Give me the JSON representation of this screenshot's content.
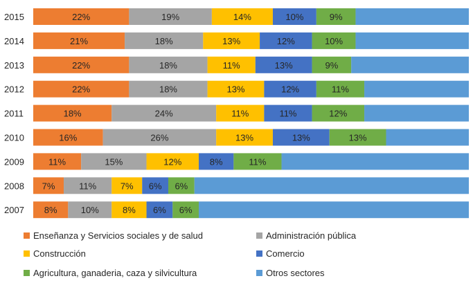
{
  "chart_data": {
    "type": "bar",
    "orientation": "horizontal",
    "stacked": "percent",
    "grid": false,
    "legend_position": "bottom",
    "categories": [
      "2015",
      "2014",
      "2013",
      "2012",
      "2011",
      "2010",
      "2009",
      "2008",
      "2007"
    ],
    "series": [
      {
        "name": "Enseñanza  y Servicios sociales y de salud",
        "color": "#ED7D31",
        "values": [
          22,
          21,
          22,
          22,
          18,
          16,
          11,
          7,
          8
        ]
      },
      {
        "name": "Administración pública",
        "color": "#A5A5A5",
        "values": [
          19,
          18,
          18,
          18,
          24,
          26,
          15,
          11,
          10
        ]
      },
      {
        "name": "Construcción",
        "color": "#FFC000",
        "values": [
          14,
          13,
          11,
          13,
          11,
          13,
          12,
          7,
          8
        ]
      },
      {
        "name": "Comercio",
        "color": "#4472C4",
        "values": [
          10,
          12,
          13,
          12,
          11,
          13,
          8,
          6,
          6
        ]
      },
      {
        "name": "Agricultura, ganaderia, caza y silvicultura",
        "color": "#70AD47",
        "values": [
          9,
          10,
          9,
          11,
          12,
          13,
          11,
          6,
          6
        ]
      },
      {
        "name": "Otros sectores",
        "color": "#5B9BD5",
        "values": [
          26,
          26,
          27,
          24,
          24,
          19,
          43,
          63,
          62
        ]
      }
    ],
    "data_labels": [
      [
        "22%",
        "19%",
        "14%",
        "10%",
        "9%",
        ""
      ],
      [
        "21%",
        "18%",
        "13%",
        "12%",
        "10%",
        ""
      ],
      [
        "22%",
        "18%",
        "11%",
        "13%",
        "9%",
        ""
      ],
      [
        "22%",
        "18%",
        "13%",
        "12%",
        "11%",
        ""
      ],
      [
        "18%",
        "24%",
        "11%",
        "11%",
        "12%",
        ""
      ],
      [
        "16%",
        "26%",
        "13%",
        "13%",
        "13%",
        ""
      ],
      [
        "11%",
        "15%",
        "12%",
        "8%",
        "11%",
        ""
      ],
      [
        "7%",
        "11%",
        "7%",
        "6%",
        "6%",
        ""
      ],
      [
        "8%",
        "10%",
        "8%",
        "6%",
        "6%",
        ""
      ]
    ]
  },
  "legend": {
    "items": [
      {
        "label": "Enseñanza  y Servicios sociales y de salud",
        "color": "#ED7D31"
      },
      {
        "label": "Administración pública",
        "color": "#A5A5A5"
      },
      {
        "label": "Construcción",
        "color": "#FFC000"
      },
      {
        "label": "Comercio",
        "color": "#4472C4"
      },
      {
        "label": "Agricultura, ganaderia, caza y silvicultura",
        "color": "#70AD47"
      },
      {
        "label": "Otros sectores",
        "color": "#5B9BD5"
      }
    ]
  }
}
